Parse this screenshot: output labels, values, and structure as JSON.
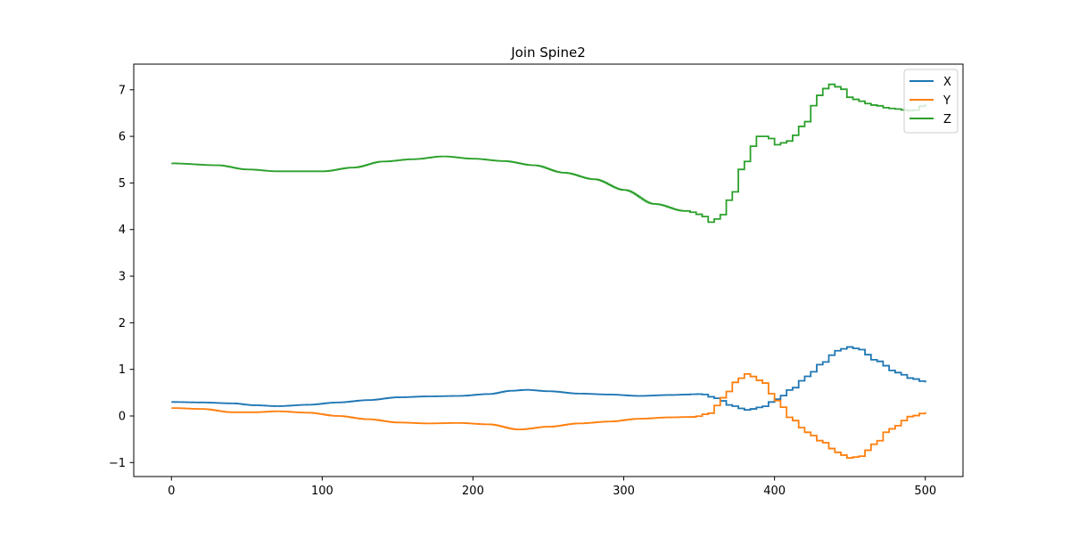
{
  "chart_data": {
    "type": "line",
    "title": "Join Spine2",
    "xlabel": "",
    "ylabel": "",
    "xlim": [
      -25,
      525
    ],
    "ylim": [
      -1.3,
      7.55
    ],
    "x_ticks": [
      0,
      100,
      200,
      300,
      400,
      500
    ],
    "y_ticks": [
      -1,
      0,
      1,
      2,
      3,
      4,
      5,
      6,
      7
    ],
    "x_tick_labels": [
      "0",
      "100",
      "200",
      "300",
      "400",
      "500"
    ],
    "y_tick_labels": [
      "−1",
      "0",
      "1",
      "2",
      "3",
      "4",
      "5",
      "6",
      "7"
    ],
    "grid": false,
    "legend_position": "top-right",
    "step_interval": 4,
    "series": [
      {
        "name": "X",
        "color": "#1f77b4",
        "points": [
          [
            0,
            0.3
          ],
          [
            20,
            0.29
          ],
          [
            40,
            0.27
          ],
          [
            55,
            0.23
          ],
          [
            70,
            0.21
          ],
          [
            90,
            0.24
          ],
          [
            110,
            0.29
          ],
          [
            130,
            0.34
          ],
          [
            150,
            0.4
          ],
          [
            170,
            0.42
          ],
          [
            190,
            0.43
          ],
          [
            210,
            0.47
          ],
          [
            225,
            0.54
          ],
          [
            235,
            0.56
          ],
          [
            250,
            0.53
          ],
          [
            270,
            0.48
          ],
          [
            290,
            0.46
          ],
          [
            310,
            0.43
          ],
          [
            330,
            0.45
          ],
          [
            350,
            0.47
          ],
          [
            360,
            0.38
          ],
          [
            370,
            0.22
          ],
          [
            380,
            0.13
          ],
          [
            390,
            0.19
          ],
          [
            400,
            0.36
          ],
          [
            410,
            0.58
          ],
          [
            420,
            0.85
          ],
          [
            430,
            1.13
          ],
          [
            440,
            1.4
          ],
          [
            448,
            1.48
          ],
          [
            455,
            1.43
          ],
          [
            465,
            1.2
          ],
          [
            480,
            0.93
          ],
          [
            490,
            0.8
          ],
          [
            500,
            0.72
          ]
        ]
      },
      {
        "name": "Y",
        "color": "#ff7f0e",
        "points": [
          [
            0,
            0.17
          ],
          [
            20,
            0.15
          ],
          [
            40,
            0.08
          ],
          [
            55,
            0.08
          ],
          [
            70,
            0.1
          ],
          [
            90,
            0.07
          ],
          [
            110,
            0.0
          ],
          [
            130,
            -0.07
          ],
          [
            150,
            -0.14
          ],
          [
            170,
            -0.16
          ],
          [
            190,
            -0.15
          ],
          [
            210,
            -0.18
          ],
          [
            230,
            -0.29
          ],
          [
            250,
            -0.23
          ],
          [
            270,
            -0.16
          ],
          [
            290,
            -0.12
          ],
          [
            310,
            -0.06
          ],
          [
            330,
            -0.03
          ],
          [
            345,
            -0.02
          ],
          [
            355,
            0.05
          ],
          [
            365,
            0.4
          ],
          [
            372,
            0.72
          ],
          [
            380,
            0.9
          ],
          [
            390,
            0.75
          ],
          [
            400,
            0.33
          ],
          [
            410,
            -0.07
          ],
          [
            420,
            -0.35
          ],
          [
            430,
            -0.55
          ],
          [
            440,
            -0.78
          ],
          [
            448,
            -0.9
          ],
          [
            455,
            -0.87
          ],
          [
            465,
            -0.6
          ],
          [
            475,
            -0.28
          ],
          [
            490,
            0.0
          ],
          [
            500,
            0.08
          ]
        ]
      },
      {
        "name": "Z",
        "color": "#2ca02c",
        "points": [
          [
            0,
            5.42
          ],
          [
            30,
            5.38
          ],
          [
            50,
            5.29
          ],
          [
            70,
            5.25
          ],
          [
            100,
            5.25
          ],
          [
            120,
            5.33
          ],
          [
            140,
            5.46
          ],
          [
            160,
            5.51
          ],
          [
            180,
            5.57
          ],
          [
            200,
            5.52
          ],
          [
            220,
            5.47
          ],
          [
            240,
            5.38
          ],
          [
            260,
            5.22
          ],
          [
            280,
            5.08
          ],
          [
            300,
            4.85
          ],
          [
            320,
            4.55
          ],
          [
            340,
            4.4
          ],
          [
            350,
            4.32
          ],
          [
            356,
            4.16
          ],
          [
            362,
            4.25
          ],
          [
            370,
            4.7
          ],
          [
            378,
            5.4
          ],
          [
            388,
            6.0
          ],
          [
            394,
            6.0
          ],
          [
            400,
            5.82
          ],
          [
            408,
            5.9
          ],
          [
            418,
            6.25
          ],
          [
            428,
            6.88
          ],
          [
            435,
            7.12
          ],
          [
            442,
            7.05
          ],
          [
            450,
            6.8
          ],
          [
            465,
            6.67
          ],
          [
            475,
            6.6
          ],
          [
            490,
            6.55
          ],
          [
            500,
            6.7
          ]
        ]
      }
    ]
  }
}
